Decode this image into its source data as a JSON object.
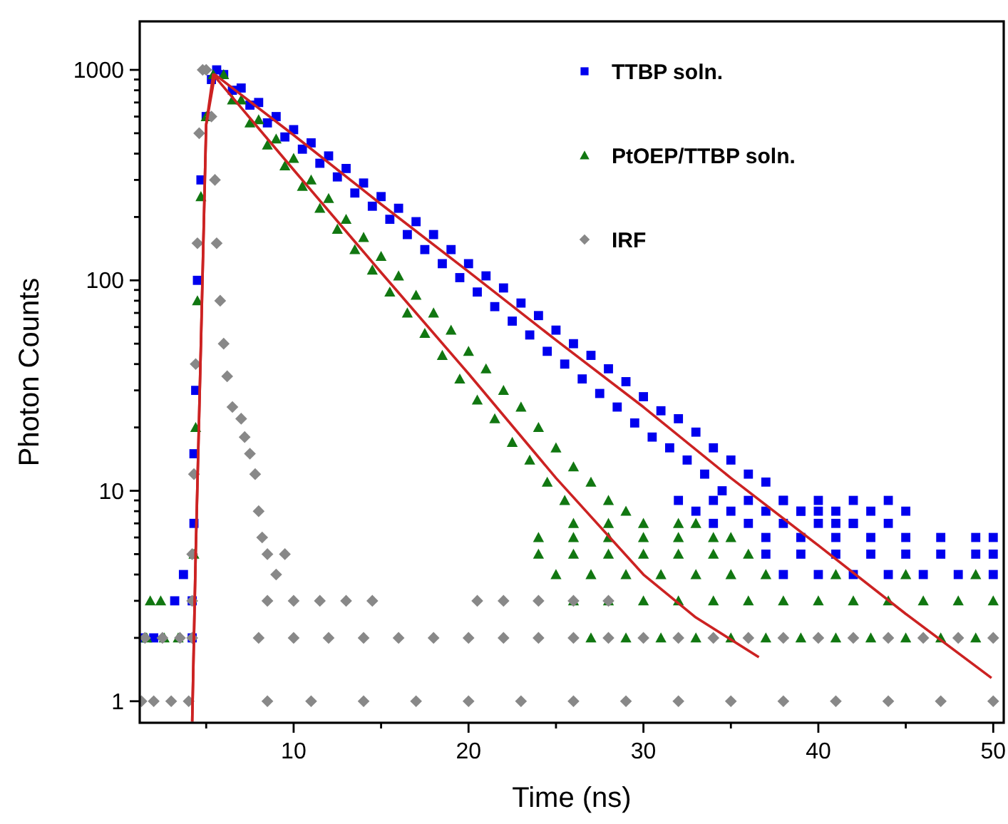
{
  "chart_data": {
    "type": "scatter",
    "xlabel": "Time (ns)",
    "ylabel": "Photon Counts",
    "log": "y",
    "legend": "top right",
    "grid": false,
    "xlim": [
      1.2,
      50.6
    ],
    "ylim": [
      0.79,
      1700
    ],
    "xticks": [
      {
        "value": 5,
        "label": null
      },
      10,
      {
        "value": 15,
        "label": null
      },
      20,
      {
        "value": 25,
        "label": null
      },
      30,
      {
        "value": 35,
        "label": null
      },
      40,
      {
        "value": 45,
        "label": null
      },
      50
    ],
    "yticks": [
      1,
      {
        "value": 2,
        "label": null
      },
      {
        "value": 3,
        "label": null
      },
      {
        "value": 4,
        "label": null
      },
      {
        "value": 5,
        "label": null
      },
      {
        "value": 6,
        "label": null
      },
      {
        "value": 7,
        "label": null
      },
      {
        "value": 8,
        "label": null
      },
      {
        "value": 9,
        "label": null
      },
      10,
      {
        "value": 20,
        "label": null
      },
      {
        "value": 30,
        "label": null
      },
      {
        "value": 40,
        "label": null
      },
      {
        "value": 50,
        "label": null
      },
      {
        "value": 60,
        "label": null
      },
      {
        "value": 70,
        "label": null
      },
      {
        "value": 80,
        "label": null
      },
      {
        "value": 90,
        "label": null
      },
      100,
      {
        "value": 200,
        "label": null
      },
      {
        "value": 300,
        "label": null
      },
      {
        "value": 400,
        "label": null
      },
      {
        "value": 500,
        "label": null
      },
      {
        "value": 600,
        "label": null
      },
      {
        "value": 700,
        "label": null
      },
      {
        "value": 800,
        "label": null
      },
      {
        "value": 900,
        "label": null
      },
      1000
    ],
    "series": [
      {
        "name": "TTBP soln.",
        "marker": "square",
        "color": "#0000ee",
        "x": [
          1.3,
          2.0,
          3.2,
          3.7,
          4.2,
          4.2,
          4.3,
          4.3,
          4.4,
          4.5,
          4.7,
          5.0,
          5.3,
          5.6,
          6,
          6.5,
          7,
          7.5,
          8,
          8.5,
          9,
          9.5,
          10,
          10.5,
          11,
          11.5,
          12,
          12.5,
          13,
          13.5,
          14,
          14.5,
          15,
          15.5,
          16,
          16.5,
          17,
          17.5,
          18,
          18.5,
          19,
          19.5,
          20,
          20.5,
          21,
          21.5,
          22,
          22.5,
          23,
          23.5,
          24,
          24.5,
          25,
          25.5,
          26,
          26.5,
          27,
          27.5,
          28,
          28.5,
          29,
          29.5,
          30,
          30.5,
          31,
          31.5,
          32,
          32.5,
          33,
          33.5,
          34,
          34.5,
          35,
          36,
          37,
          38,
          39,
          40,
          41,
          42,
          32,
          34,
          36,
          38,
          40,
          42,
          44,
          33,
          35,
          37,
          39,
          41,
          43,
          45,
          34,
          36,
          38,
          40,
          42,
          44,
          37,
          39,
          41,
          43,
          45,
          47,
          49,
          50,
          37,
          39,
          41,
          43,
          45,
          47,
          49,
          50,
          38,
          40,
          42,
          44,
          46,
          48,
          50
        ],
        "values": [
          2,
          2,
          3,
          4,
          3,
          2,
          7,
          15,
          30,
          100,
          300,
          600,
          900,
          1000,
          950,
          800,
          820,
          680,
          700,
          560,
          600,
          480,
          520,
          420,
          450,
          360,
          390,
          310,
          340,
          260,
          290,
          225,
          250,
          195,
          220,
          165,
          190,
          140,
          165,
          120,
          140,
          103,
          120,
          88,
          105,
          75,
          92,
          64,
          78,
          55,
          68,
          46,
          58,
          40,
          50,
          34,
          44,
          29,
          38,
          25,
          33,
          21,
          28,
          18,
          24,
          16,
          22,
          14,
          19,
          12,
          16,
          10,
          14,
          12,
          11,
          9,
          8,
          8,
          7,
          7,
          9,
          9,
          9,
          9,
          9,
          9,
          9,
          8,
          8,
          8,
          8,
          8,
          8,
          8,
          7,
          7,
          7,
          7,
          7,
          7,
          6,
          6,
          6,
          6,
          6,
          6,
          6,
          6,
          5,
          5,
          5,
          5,
          5,
          5,
          5,
          5,
          4,
          4,
          4,
          4,
          4,
          4,
          4
        ]
      },
      {
        "name": "PtOEP/TTBP soln.",
        "marker": "triangle",
        "color": "#117711",
        "x": [
          1.8,
          2.4,
          1.6,
          2.6,
          3.4,
          4.3,
          4.4,
          4.5,
          4.7,
          5.0,
          5.4,
          6,
          6.5,
          7,
          7.5,
          8,
          8.5,
          9,
          9.5,
          10,
          10.5,
          11,
          11.5,
          12,
          12.5,
          13,
          13.5,
          14,
          14.5,
          15,
          15.5,
          16,
          16.5,
          17,
          17.5,
          18,
          18.5,
          19,
          19.5,
          20,
          20.5,
          21,
          21.5,
          22,
          22.5,
          23,
          23.5,
          24,
          24.5,
          25,
          25.5,
          26,
          27,
          28,
          29,
          26,
          28,
          30,
          32,
          33,
          24,
          26,
          28,
          30,
          32,
          34,
          35,
          24,
          26,
          28,
          30,
          32,
          34,
          36,
          25,
          27,
          29,
          31,
          33,
          35,
          37,
          41,
          45,
          49,
          26,
          28,
          30,
          32,
          34,
          36,
          38,
          40,
          42,
          44,
          46,
          48,
          50,
          27,
          29,
          31,
          33,
          35,
          37,
          39,
          41,
          43,
          45,
          47,
          49
        ],
        "values": [
          3,
          3,
          2,
          2,
          2,
          5,
          20,
          80,
          250,
          600,
          950,
          950,
          720,
          720,
          560,
          580,
          440,
          470,
          350,
          380,
          280,
          300,
          220,
          245,
          175,
          195,
          140,
          160,
          112,
          130,
          88,
          105,
          70,
          85,
          56,
          70,
          44,
          58,
          34,
          46,
          27,
          38,
          22,
          30,
          17,
          25,
          14,
          20,
          11,
          16,
          9,
          13,
          11,
          9,
          8,
          7,
          7,
          7,
          7,
          7,
          6,
          6,
          6,
          6,
          6,
          6,
          6,
          5,
          5,
          5,
          5,
          5,
          5,
          5,
          4,
          4,
          4,
          4,
          4,
          4,
          4,
          4,
          4,
          4,
          3,
          3,
          3,
          3,
          3,
          3,
          3,
          3,
          3,
          3,
          3,
          3,
          3,
          2,
          2,
          2,
          2,
          2,
          2,
          2,
          2,
          2,
          2,
          2,
          2
        ]
      },
      {
        "name": "IRF",
        "marker": "diamond",
        "color": "#888888",
        "x": [
          1.3,
          2,
          3,
          4,
          1.5,
          2.5,
          3.5,
          4.2,
          4.2,
          4.2,
          4.3,
          4.4,
          4.5,
          4.6,
          4.8,
          5.0,
          5.3,
          5.5,
          5.6,
          5.8,
          6,
          6.2,
          6.5,
          7,
          7.2,
          7.5,
          7.8,
          8,
          8.2,
          8.5,
          9,
          9.5,
          8.5,
          10,
          11.5,
          13,
          14.5,
          20.5,
          22,
          24,
          26,
          28,
          8,
          10,
          12,
          14,
          16,
          18,
          20,
          22,
          24,
          26,
          28,
          30,
          32,
          34,
          36,
          38,
          40,
          42,
          44,
          46,
          48,
          50,
          8.5,
          11,
          14,
          17,
          20,
          23,
          26,
          29,
          32,
          35,
          38,
          41,
          44,
          47,
          50
        ],
        "values": [
          1,
          1,
          1,
          1,
          2,
          2,
          2,
          2,
          3,
          5,
          12,
          40,
          150,
          500,
          1000,
          1000,
          600,
          300,
          150,
          80,
          50,
          35,
          25,
          22,
          18,
          15,
          12,
          8,
          6,
          5,
          4,
          5,
          3,
          3,
          3,
          3,
          3,
          3,
          3,
          3,
          3,
          3,
          2,
          2,
          2,
          2,
          2,
          2,
          2,
          2,
          2,
          2,
          2,
          2,
          2,
          2,
          2,
          2,
          2,
          2,
          2,
          2,
          2,
          2,
          1,
          1,
          1,
          1,
          1,
          1,
          1,
          1,
          1,
          1,
          1,
          1,
          1,
          1,
          1
        ]
      },
      {
        "type": "line",
        "marker": "none",
        "color": "#cc2222",
        "x": [
          4.2,
          4.4,
          4.7,
          5.0,
          5.5,
          10,
          15,
          20,
          25,
          30,
          35,
          40,
          45,
          49.9
        ],
        "values": [
          0.8,
          5,
          50,
          550,
          950,
          490,
          230,
          110,
          52,
          25,
          11.5,
          5.5,
          2.6,
          1.29
        ]
      },
      {
        "type": "line",
        "marker": "none",
        "color": "#cc2222",
        "x": [
          4.2,
          4.4,
          4.7,
          5.0,
          5.4,
          10,
          15,
          20,
          25,
          30,
          33,
          36.6
        ],
        "values": [
          0.8,
          5,
          50,
          550,
          950,
          335,
          109,
          36,
          11.5,
          4.0,
          2.5,
          1.62
        ]
      }
    ]
  }
}
